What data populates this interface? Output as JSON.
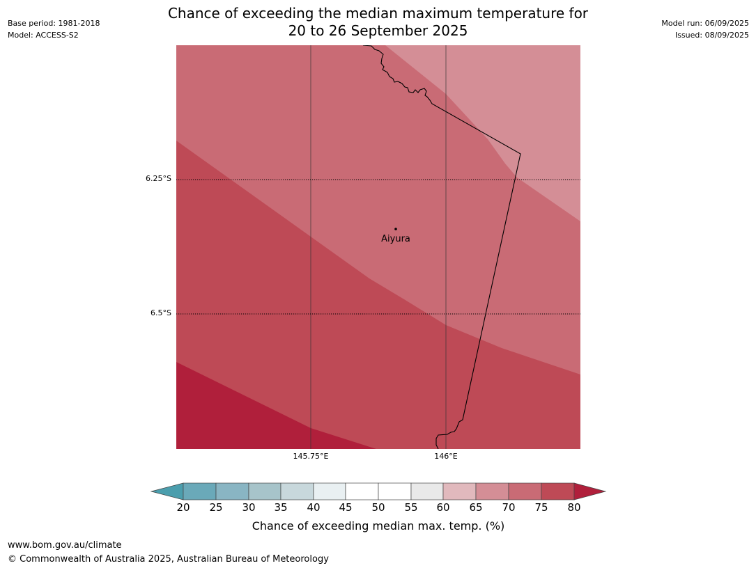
{
  "header": {
    "base_period": "Base period: 1981-2018",
    "model": "Model: ACCESS-S2",
    "model_run": "Model run: 06/09/2025",
    "issued": "Issued: 08/09/2025",
    "title_line1": "Chance of exceeding the median maximum temperature for",
    "title_line2": "20 to 26 September 2025"
  },
  "map": {
    "lat_labels": [
      "6.25°S",
      "6.5°S"
    ],
    "lon_labels": [
      "145.75°E",
      "146°E"
    ],
    "place_label": "Aiyura",
    "colors": {
      "band_60_65": "#e1b9bd",
      "band_65_70": "#d48e96",
      "band_70_75": "#c96b75",
      "band_75_80": "#be4a56",
      "band_above_80": "#b01f3b"
    }
  },
  "colorbar": {
    "ticks": [
      "20",
      "25",
      "30",
      "35",
      "40",
      "45",
      "50",
      "55",
      "60",
      "65",
      "70",
      "75",
      "80"
    ],
    "label": "Chance of exceeding median max. temp. (%)",
    "colors": {
      "below_20": "#4b9ead",
      "b20_25": "#6aa9b9",
      "b25_30": "#89b5c3",
      "b30_35": "#a7c4ca",
      "b35_40": "#c8d8dc",
      "b40_45": "#e9f0f2",
      "b45_50": "#ffffff",
      "b50_55": "#ffffff",
      "b55_60": "#e9e9e9",
      "b60_65": "#e1b9bd",
      "b65_70": "#d48e96",
      "b70_75": "#c96b75",
      "b75_80": "#be4a56",
      "above_80": "#b01f3b"
    }
  },
  "footer": {
    "url": "www.bom.gov.au/climate",
    "copyright": "© Commonwealth of Australia 2025, Australian Bureau of Meteorology"
  }
}
